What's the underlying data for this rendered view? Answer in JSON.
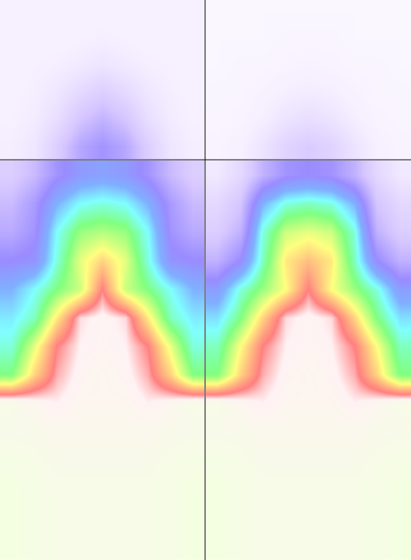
{
  "chart_data": [
    {
      "type": "heatmap",
      "tick_labels": false,
      "zlim": [
        0,
        1
      ],
      "xlim": [
        -0.5,
        8.5
      ],
      "ylim": [
        -0.5,
        5.5
      ],
      "z": [
        [
          0.08,
          0.08,
          0.08,
          0.08,
          0.08,
          0.08,
          0.08,
          0.08,
          0.08
        ],
        [
          0.08,
          0.08,
          0.08,
          0.09,
          0.1,
          0.09,
          0.08,
          0.08,
          0.08
        ],
        [
          0.08,
          0.09,
          0.1,
          0.12,
          0.14,
          0.12,
          0.1,
          0.09,
          0.08
        ],
        [
          0.08,
          0.1,
          0.13,
          0.18,
          0.22,
          0.18,
          0.13,
          0.1,
          0.08
        ],
        [
          0.09,
          0.11,
          0.16,
          0.25,
          0.3,
          0.25,
          0.16,
          0.11,
          0.09
        ],
        [
          0.1,
          0.13,
          0.22,
          0.33,
          0.38,
          0.33,
          0.22,
          0.13,
          0.1
        ]
      ]
    },
    {
      "type": "heatmap",
      "tick_labels": false,
      "zlim": [
        0,
        1
      ],
      "xlim": [
        -0.5,
        8.5
      ],
      "ylim": [
        -0.5,
        5.5
      ],
      "z": [
        [
          0.05,
          0.05,
          0.05,
          0.05,
          0.05,
          0.05,
          0.05,
          0.05,
          0.05
        ],
        [
          0.05,
          0.05,
          0.05,
          0.06,
          0.06,
          0.06,
          0.05,
          0.05,
          0.05
        ],
        [
          0.05,
          0.06,
          0.06,
          0.07,
          0.08,
          0.07,
          0.06,
          0.06,
          0.05
        ],
        [
          0.06,
          0.06,
          0.08,
          0.1,
          0.11,
          0.1,
          0.08,
          0.06,
          0.06
        ],
        [
          0.06,
          0.07,
          0.1,
          0.14,
          0.16,
          0.14,
          0.1,
          0.07,
          0.06
        ],
        [
          0.07,
          0.09,
          0.14,
          0.2,
          0.23,
          0.2,
          0.14,
          0.09,
          0.07
        ]
      ]
    },
    {
      "type": "heatmap",
      "tick_labels": false,
      "zlim": [
        0,
        1
      ],
      "xlim": [
        -0.5,
        8.5
      ],
      "ylim": [
        -0.5,
        13.5
      ],
      "z": [
        [
          0.22,
          0.28,
          0.38,
          0.44,
          0.46,
          0.44,
          0.38,
          0.28,
          0.22
        ],
        [
          0.28,
          0.36,
          0.5,
          0.58,
          0.6,
          0.58,
          0.5,
          0.36,
          0.28
        ],
        [
          0.32,
          0.38,
          0.58,
          0.68,
          0.7,
          0.68,
          0.58,
          0.38,
          0.32
        ],
        [
          0.4,
          0.42,
          0.6,
          0.74,
          0.8,
          0.74,
          0.6,
          0.42,
          0.4
        ],
        [
          0.5,
          0.58,
          0.66,
          0.72,
          0.88,
          0.72,
          0.66,
          0.58,
          0.5
        ],
        [
          0.56,
          0.62,
          0.78,
          0.92,
          0.94,
          0.92,
          0.78,
          0.62,
          0.56
        ],
        [
          0.6,
          0.74,
          0.88,
          0.93,
          0.94,
          0.93,
          0.88,
          0.74,
          0.6
        ],
        [
          0.66,
          0.8,
          0.9,
          0.94,
          0.95,
          0.94,
          0.9,
          0.8,
          0.66
        ],
        [
          0.98,
          0.95,
          0.93,
          0.95,
          0.95,
          0.95,
          0.93,
          0.95,
          0.98
        ],
        [
          0.97,
          0.97,
          0.96,
          0.96,
          0.96,
          0.96,
          0.96,
          0.97,
          0.97
        ],
        [
          0.99,
          0.98,
          0.97,
          0.97,
          0.97,
          0.97,
          0.97,
          0.98,
          0.99
        ],
        [
          1,
          0.99,
          0.98,
          0.98,
          0.98,
          0.98,
          0.98,
          0.99,
          1
        ],
        [
          1,
          0.99,
          0.98,
          0.98,
          0.98,
          0.98,
          0.98,
          0.99,
          1
        ],
        [
          1,
          0.99,
          0.98,
          0.98,
          0.98,
          0.98,
          0.98,
          0.99,
          1
        ]
      ]
    },
    {
      "type": "heatmap",
      "tick_labels": false,
      "zlim": [
        0,
        1
      ],
      "xlim": [
        -0.5,
        8.5
      ],
      "ylim": [
        -0.5,
        13.5
      ],
      "z": [
        [
          0.12,
          0.18,
          0.3,
          0.38,
          0.4,
          0.38,
          0.3,
          0.18,
          0.12
        ],
        [
          0.18,
          0.25,
          0.5,
          0.6,
          0.62,
          0.6,
          0.5,
          0.25,
          0.18
        ],
        [
          0.22,
          0.3,
          0.6,
          0.72,
          0.74,
          0.72,
          0.6,
          0.3,
          0.22
        ],
        [
          0.3,
          0.4,
          0.62,
          0.78,
          0.82,
          0.78,
          0.62,
          0.4,
          0.3
        ],
        [
          0.45,
          0.6,
          0.68,
          0.76,
          0.88,
          0.76,
          0.68,
          0.6,
          0.45
        ],
        [
          0.55,
          0.66,
          0.8,
          0.92,
          0.94,
          0.92,
          0.8,
          0.66,
          0.55
        ],
        [
          0.62,
          0.76,
          0.88,
          0.93,
          0.94,
          0.93,
          0.88,
          0.76,
          0.62
        ],
        [
          0.66,
          0.8,
          0.9,
          0.94,
          0.95,
          0.94,
          0.9,
          0.8,
          0.66
        ],
        [
          0.98,
          0.95,
          0.93,
          0.95,
          0.95,
          0.95,
          0.93,
          0.95,
          0.98
        ],
        [
          0.97,
          0.97,
          0.96,
          0.96,
          0.96,
          0.96,
          0.96,
          0.97,
          0.97
        ],
        [
          0.99,
          0.98,
          0.97,
          0.97,
          0.97,
          0.97,
          0.97,
          0.98,
          0.99
        ],
        [
          1,
          0.99,
          0.98,
          0.98,
          0.98,
          0.98,
          0.98,
          0.99,
          1
        ],
        [
          1,
          0.99,
          0.98,
          0.98,
          0.98,
          0.98,
          0.98,
          0.99,
          1
        ],
        [
          1,
          0.99,
          0.98,
          0.98,
          0.98,
          0.98,
          0.98,
          0.99,
          1
        ]
      ]
    }
  ]
}
